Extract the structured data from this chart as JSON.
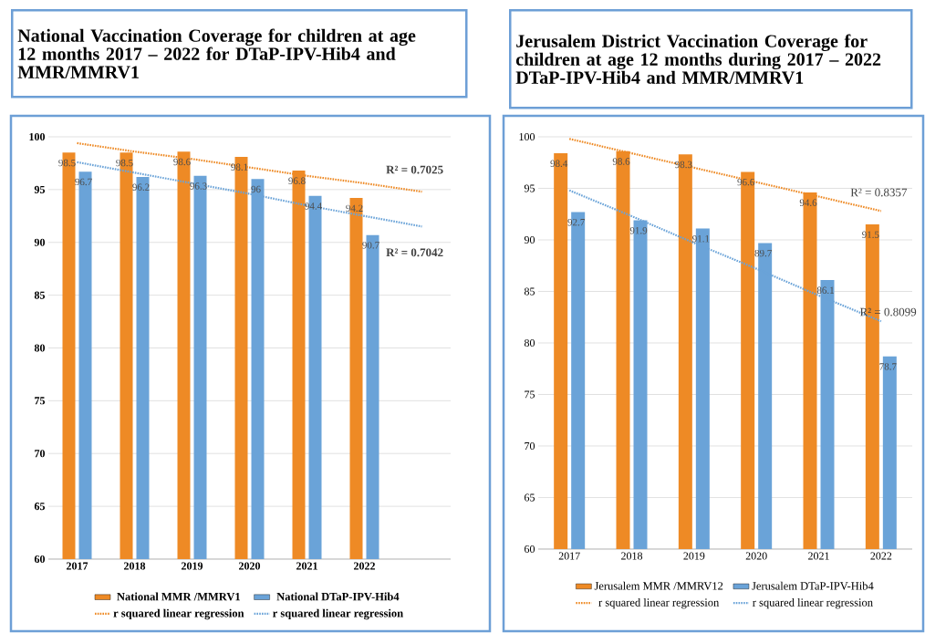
{
  "chart_data": [
    {
      "type": "bar",
      "title": "National Vaccination Coverage for children at age 12 months 2017 – 2022 for DTaP-IPV-Hib4 and MMR/MMRV1",
      "categories": [
        "2017",
        "2018",
        "2019",
        "2020",
        "2021",
        "2022",
        null
      ],
      "series": [
        {
          "name": "National MMR /MMRV1",
          "color": "#ee8a25",
          "values": [
            98.5,
            98.5,
            98.6,
            98.1,
            96.8,
            94.2,
            null
          ],
          "value_labels": [
            "98.5",
            "98.5",
            "98.6",
            "98.1",
            "96.8",
            "94.2",
            null
          ]
        },
        {
          "name": "National DTaP-IPV-Hib4",
          "color": "#6aa3d8",
          "values": [
            96.7,
            96.2,
            96.3,
            96,
            94.4,
            90.7,
            null
          ],
          "value_labels": [
            "96.7",
            "96.2",
            "96.3",
            "96",
            "94.4",
            "90.7",
            null
          ]
        },
        {
          "name": "r squared linear regression",
          "type": "line",
          "line_style": "dotted",
          "color": "#ee8a25",
          "values": [
            99.4,
            98.6,
            97.9,
            97.1,
            96.3,
            95.6,
            94.8
          ]
        },
        {
          "name": "r squared linear regression",
          "type": "line",
          "line_style": "dotted",
          "color": "#6aa3d8",
          "values": [
            97.6,
            96.6,
            95.6,
            94.6,
            93.5,
            92.5,
            91.5
          ]
        }
      ],
      "ylim": [
        60,
        100
      ],
      "yticks": [
        60,
        65,
        70,
        75,
        80,
        85,
        90,
        95,
        100
      ],
      "grid": "y",
      "legend": "bottom",
      "annotations": [
        "R² = 0.7025",
        "R² = 0.7042"
      ]
    },
    {
      "type": "bar",
      "title": "Jerusalem District Vaccination Coverage for children at age 12 months during 2017 – 2022 DTaP-IPV-Hib4 and MMR/MMRV1",
      "categories": [
        "2017",
        "2018",
        "2019",
        "2020",
        "2021",
        "2022"
      ],
      "series": [
        {
          "name": "Jerusalem MMR /MMRV12",
          "color": "#ee8a25",
          "values": [
            98.4,
            98.6,
            98.3,
            96.6,
            94.6,
            91.5
          ],
          "value_labels": [
            "98.4",
            "98.6",
            "98.3",
            "96.6",
            "94.6",
            "91.5"
          ]
        },
        {
          "name": "Jerusalem DTaP-IPV-Hib4",
          "color": "#6aa3d8",
          "values": [
            92.7,
            91.9,
            91.1,
            89.7,
            86.1,
            78.7
          ],
          "value_labels": [
            "92.7",
            "91.9",
            "91.1",
            "89.7",
            "86.1",
            "78.7"
          ]
        },
        {
          "name": "r squared linear regression",
          "type": "line",
          "line_style": "dotted",
          "color": "#ee8a25",
          "values": [
            99.8,
            98.4,
            97.0,
            95.6,
            94.2,
            92.8
          ]
        },
        {
          "name": "r squared linear regression",
          "type": "line",
          "line_style": "dotted",
          "color": "#6aa3d8",
          "values": [
            94.8,
            92.3,
            89.7,
            87.2,
            84.6,
            82.1
          ]
        }
      ],
      "ylim": [
        60,
        100
      ],
      "yticks": [
        60,
        65,
        70,
        75,
        80,
        85,
        90,
        95,
        100
      ],
      "grid": "y",
      "legend": "bottom",
      "annotations": [
        "R² = 0.8357",
        "R² = 0.8099"
      ]
    }
  ]
}
